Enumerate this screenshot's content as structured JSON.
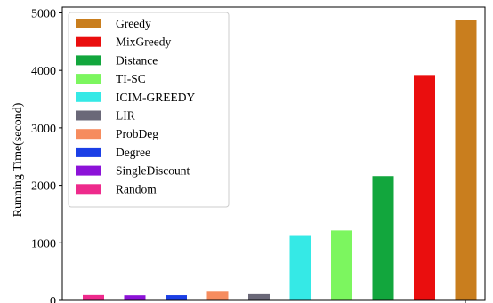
{
  "chart_data": {
    "type": "bar",
    "ylabel": "Running Time(second)",
    "ylim": [
      0,
      5100
    ],
    "yticks": [
      0,
      1000,
      2000,
      3000,
      4000,
      5000
    ],
    "grid": false,
    "legend_position": "top-left",
    "series": [
      {
        "name": "Random",
        "value": 95,
        "color": "#ee2a8c"
      },
      {
        "name": "SingleDiscount",
        "value": 90,
        "color": "#8c12d8"
      },
      {
        "name": "Degree",
        "value": 92,
        "color": "#1b3fe6"
      },
      {
        "name": "ProbDeg",
        "value": 150,
        "color": "#f68c5e"
      },
      {
        "name": "LIR",
        "value": 110,
        "color": "#6a6878"
      },
      {
        "name": "ICIM-GREEDY",
        "value": 1120,
        "color": "#35e9e6"
      },
      {
        "name": "TI-SC",
        "value": 1215,
        "color": "#7cf65f"
      },
      {
        "name": "Distance",
        "value": 2160,
        "color": "#12a63d"
      },
      {
        "name": "MixGreedy",
        "value": 3920,
        "color": "#ea0e0e"
      },
      {
        "name": "Greedy",
        "value": 4870,
        "color": "#c97e1e"
      }
    ],
    "legend_order": [
      "Greedy",
      "MixGreedy",
      "Distance",
      "TI-SC",
      "ICIM-GREEDY",
      "LIR",
      "ProbDeg",
      "Degree",
      "SingleDiscount",
      "Random"
    ]
  }
}
